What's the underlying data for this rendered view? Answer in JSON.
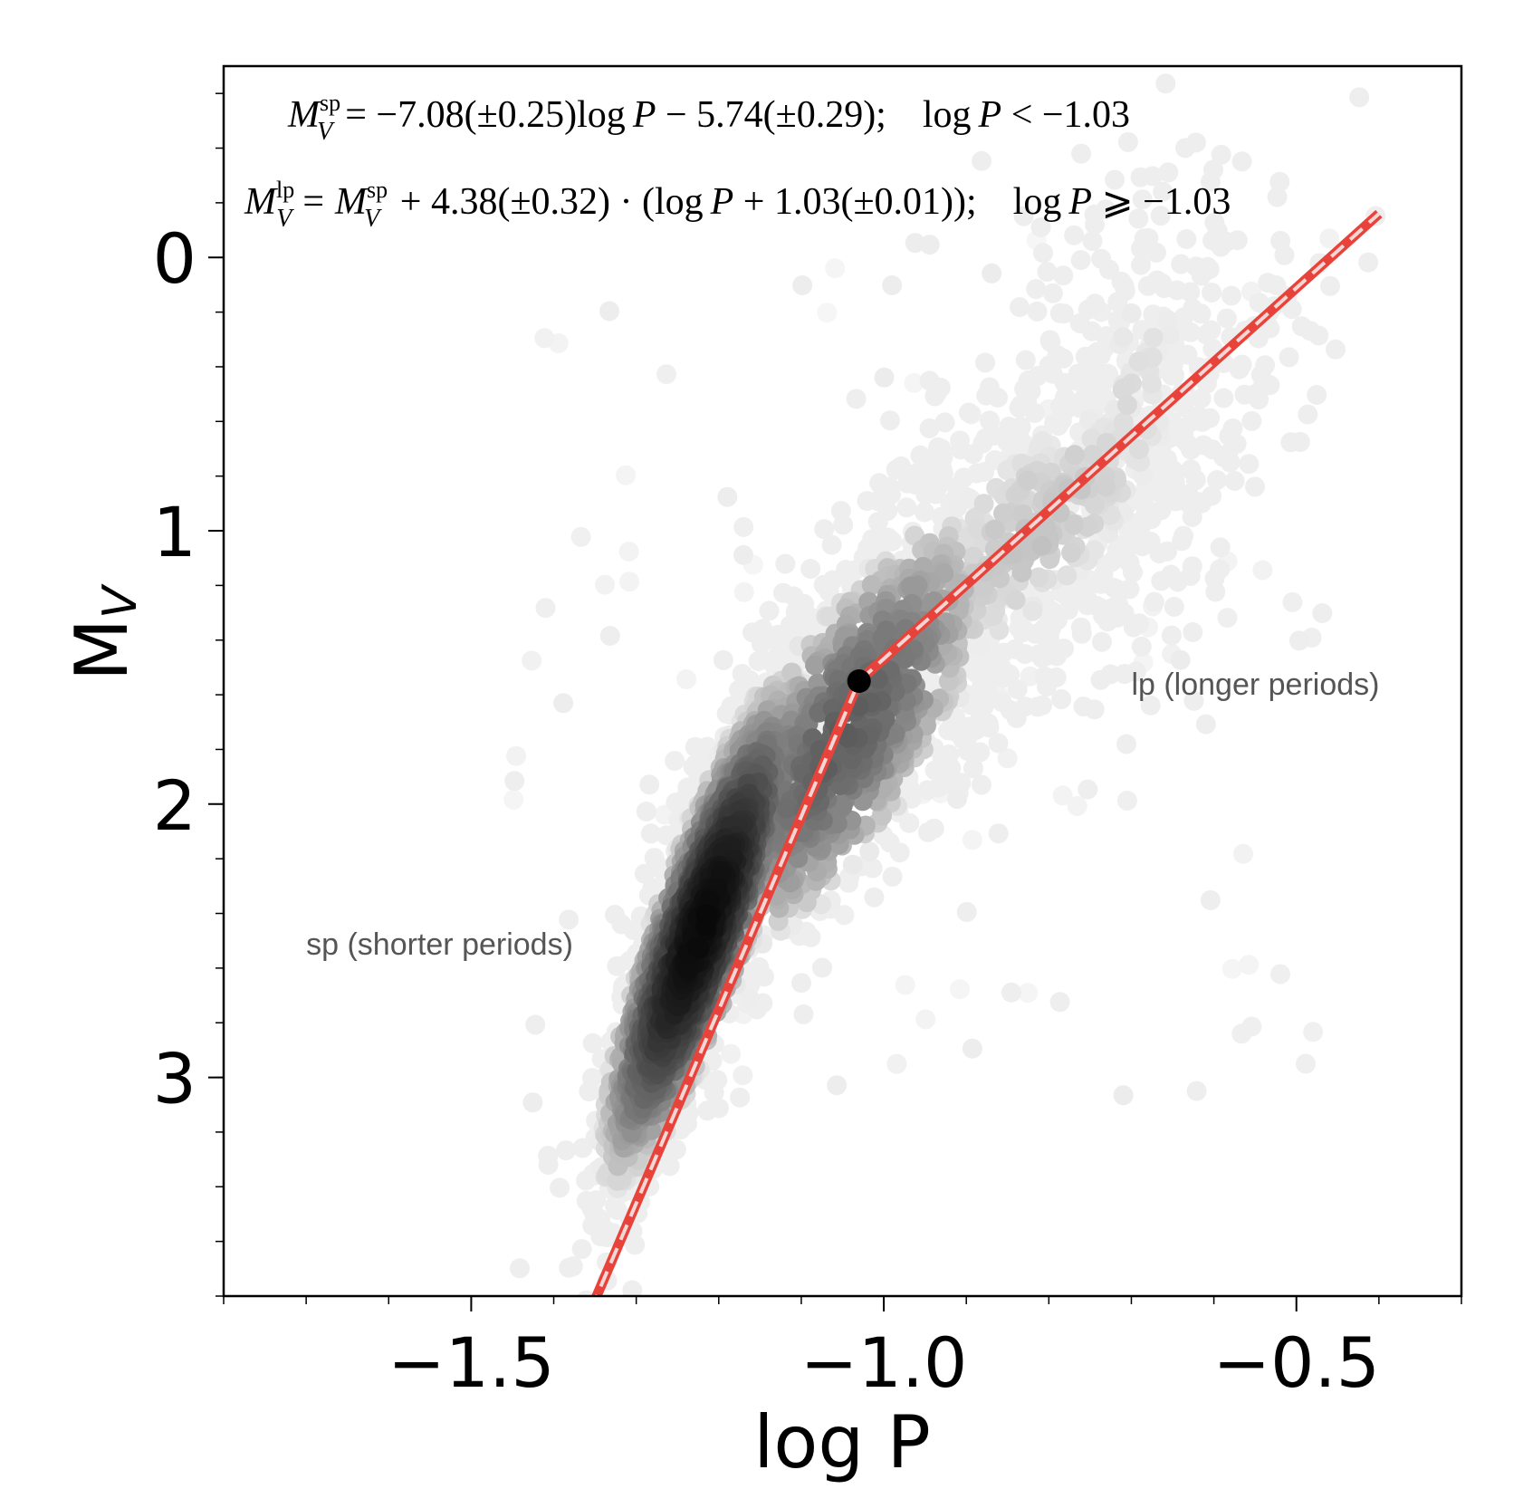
{
  "chart_data": {
    "type": "scatter",
    "title": "",
    "xlabel": "log P",
    "ylabel_main": "M",
    "ylabel_sub": "V",
    "xlim": [
      -1.8,
      -0.3
    ],
    "ylim": [
      3.8,
      -0.7
    ],
    "y_inverted": true,
    "xticks": [
      {
        "value": -1.5,
        "label": "−1.5"
      },
      {
        "value": -1.0,
        "label": "−1.0"
      },
      {
        "value": -0.5,
        "label": "−0.5"
      }
    ],
    "yticks": [
      {
        "value": 0,
        "label": "0"
      },
      {
        "value": 1,
        "label": "1"
      },
      {
        "value": 2,
        "label": "2"
      },
      {
        "value": 3,
        "label": "3"
      }
    ],
    "x_minor_step": 0.1,
    "y_minor_step": 0.2,
    "grid": false,
    "legend": "none",
    "fit": {
      "type": "broken-line",
      "color": "#e8433b",
      "inner_dash_color": "#f4d6d4",
      "points": [
        {
          "x": -1.355,
          "y": 3.85
        },
        {
          "x": -1.03,
          "y": 1.55
        },
        {
          "x": -0.4,
          "y": -0.16
        }
      ],
      "breakpoint": {
        "x": -1.03,
        "y": 1.55,
        "color": "#000000"
      }
    },
    "scatter": {
      "description_colormap": "gray density",
      "clusters": [
        {
          "cx": -1.22,
          "cy": 2.45,
          "sx": 0.055,
          "sy": 0.42,
          "rho": -0.85,
          "n": 2600,
          "gray_core": 8
        },
        {
          "cx": -1.05,
          "cy": 1.75,
          "sx": 0.1,
          "sy": 0.45,
          "rho": -0.75,
          "n": 900,
          "gray_core": 90
        },
        {
          "cx": -0.82,
          "cy": 1.0,
          "sx": 0.14,
          "sy": 0.45,
          "rho": -0.7,
          "n": 700,
          "gray_core": 190
        },
        {
          "cx": -0.7,
          "cy": 0.55,
          "sx": 0.08,
          "sy": 0.55,
          "rho": -0.4,
          "n": 250,
          "gray_core": 215
        }
      ]
    },
    "annotations": [
      {
        "id": "sp",
        "text": "sp (shorter periods)",
        "x": -1.7,
        "y": 2.55
      },
      {
        "id": "lp",
        "text": "lp (longer periods)",
        "x": -0.7,
        "y": 1.6
      }
    ],
    "equations": {
      "eq1": {
        "lhs_var": "M",
        "lhs_sub": "V",
        "lhs_sup": "sp",
        "rhs": "= −7.08(±0.25)log",
        "rhs_var": "P",
        "rhs2": " − 5.74(±0.29);",
        "cond_pre": "log",
        "cond_var": "P",
        "cond_post": " < −1.03"
      },
      "eq2": {
        "lhs_var": "M",
        "lhs_sub": "V",
        "lhs_sup": "lp",
        "mid_var": "M",
        "mid_sub": "V",
        "mid_sup": "sp",
        "rhs": " + 4.38(±0.32) · (log",
        "rhs_var": "P",
        "rhs2": " + 1.03(±0.01));",
        "cond_pre": "log",
        "cond_var": "P",
        "cond_post": " ⩾ −1.03"
      }
    }
  }
}
